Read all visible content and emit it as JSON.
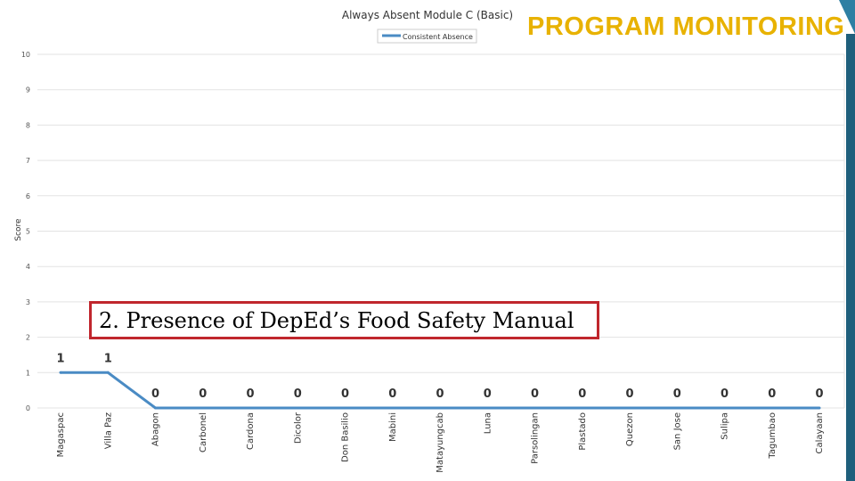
{
  "overlay": {
    "title": "PROGRAM MONITORING",
    "callout": "2. Presence of DepEd’s Food Safety Manual"
  },
  "colors": {
    "line": "#4a8bc4",
    "grid": "#e3e3e3",
    "callout_border": "#c0262d",
    "overlay_title": "#e8b200",
    "accent": "#2e7fa3"
  },
  "chart_data": {
    "type": "line",
    "title": "Always Absent Module C (Basic)",
    "xlabel": "",
    "ylabel": "Score",
    "ylim": [
      0,
      10
    ],
    "yticks": [
      "0",
      "1",
      "2",
      "3",
      "4",
      "5",
      "6",
      "7",
      "8",
      "9",
      "10"
    ],
    "grid": true,
    "legend_position": "top-center",
    "categories": [
      "Magaspac",
      "Villa Paz",
      "Abagon",
      "Carbonel",
      "Cardona",
      "Dicolor",
      "Don Basilio",
      "Mabini",
      "Matayungcab",
      "Luna",
      "Parsolingan",
      "Plastado",
      "Quezon",
      "San Jose",
      "Sulipa",
      "Tagumbao",
      "Calayaan"
    ],
    "series": [
      {
        "name": "Consistent Absence",
        "values": [
          1,
          1,
          0,
          0,
          0,
          0,
          0,
          0,
          0,
          0,
          0,
          0,
          0,
          0,
          0,
          0,
          0
        ],
        "labels": [
          "1",
          "1",
          "0",
          "0",
          "0",
          "0",
          "0",
          "0",
          "0",
          "0",
          "0",
          "0",
          "0",
          "0",
          "0",
          "0",
          "0"
        ]
      }
    ]
  }
}
